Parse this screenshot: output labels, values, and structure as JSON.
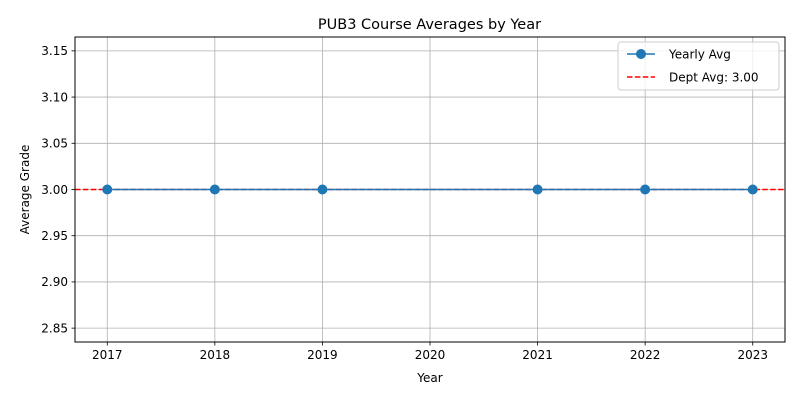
{
  "chart_data": {
    "type": "line",
    "title": "PUB3 Course Averages by Year",
    "xlabel": "Year",
    "ylabel": "Average Grade",
    "x": [
      2017,
      2018,
      2019,
      2021,
      2022,
      2023
    ],
    "x_ticks": [
      "2017",
      "2018",
      "2019",
      "2020",
      "2021",
      "2022",
      "2023"
    ],
    "x_tick_values": [
      2017,
      2018,
      2019,
      2020,
      2021,
      2022,
      2023
    ],
    "xlim": [
      2016.7,
      2023.3
    ],
    "ylim": [
      2.835,
      3.165
    ],
    "y_ticks": [
      "2.85",
      "2.90",
      "2.95",
      "3.00",
      "3.05",
      "3.10",
      "3.15"
    ],
    "y_tick_values": [
      2.85,
      2.9,
      2.95,
      3.0,
      3.05,
      3.1,
      3.15
    ],
    "series": [
      {
        "name": "Yearly Avg",
        "values": [
          3.0,
          3.0,
          3.0,
          3.0,
          3.0,
          3.0
        ],
        "color": "#1f77b4",
        "style": "solid",
        "marker": "circle"
      }
    ],
    "reference_line": {
      "label": "Dept Avg: 3.00",
      "value": 3.0,
      "color": "#ff0000",
      "style": "dashed"
    },
    "grid": true,
    "legend_position": "top-right"
  }
}
